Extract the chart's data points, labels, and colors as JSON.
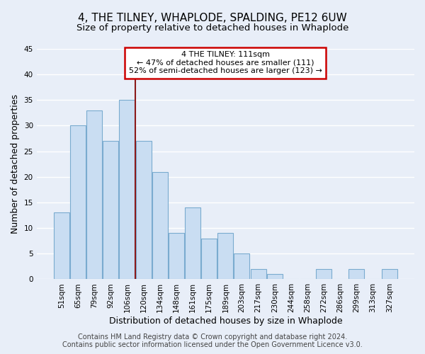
{
  "title": "4, THE TILNEY, WHAPLODE, SPALDING, PE12 6UW",
  "subtitle": "Size of property relative to detached houses in Whaplode",
  "xlabel": "Distribution of detached houses by size in Whaplode",
  "ylabel": "Number of detached properties",
  "bin_labels": [
    "51sqm",
    "65sqm",
    "79sqm",
    "92sqm",
    "106sqm",
    "120sqm",
    "134sqm",
    "148sqm",
    "161sqm",
    "175sqm",
    "189sqm",
    "203sqm",
    "217sqm",
    "230sqm",
    "244sqm",
    "258sqm",
    "272sqm",
    "286sqm",
    "299sqm",
    "313sqm",
    "327sqm"
  ],
  "bar_heights": [
    13,
    30,
    33,
    27,
    35,
    27,
    21,
    9,
    14,
    8,
    9,
    5,
    2,
    1,
    0,
    0,
    2,
    0,
    2,
    0,
    2
  ],
  "bar_color": "#c9ddf2",
  "bar_edge_color": "#7aabcf",
  "ylim": [
    0,
    45
  ],
  "yticks": [
    0,
    5,
    10,
    15,
    20,
    25,
    30,
    35,
    40,
    45
  ],
  "vline_x": 4.5,
  "vline_color": "#8b1a1a",
  "annotation_title": "4 THE TILNEY: 111sqm",
  "annotation_line1": "← 47% of detached houses are smaller (111)",
  "annotation_line2": "52% of semi-detached houses are larger (123) →",
  "annotation_box_color": "#ffffff",
  "annotation_box_edge_color": "#cc0000",
  "footer_line1": "Contains HM Land Registry data © Crown copyright and database right 2024.",
  "footer_line2": "Contains public sector information licensed under the Open Government Licence v3.0.",
  "fig_background_color": "#e8eef8",
  "plot_background_color": "#e8eef8",
  "grid_color": "#ffffff",
  "title_fontsize": 11,
  "subtitle_fontsize": 9.5,
  "axis_label_fontsize": 9,
  "tick_fontsize": 7.5,
  "annotation_fontsize": 8,
  "footer_fontsize": 7
}
